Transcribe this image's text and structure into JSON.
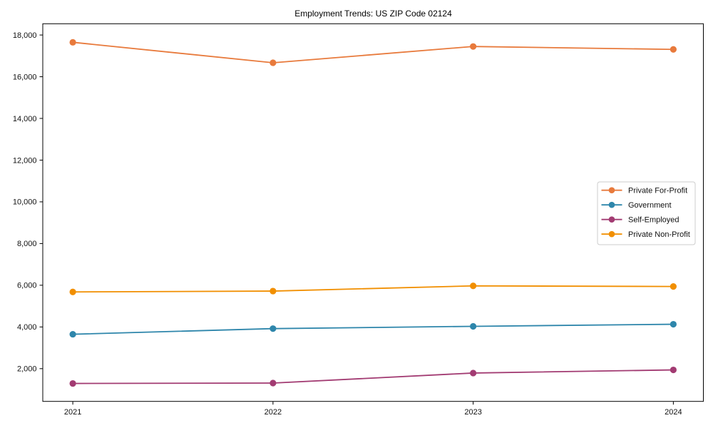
{
  "chart_data": {
    "type": "line",
    "title": "Employment Trends: US ZIP Code 02124",
    "xlabel": "",
    "ylabel": "",
    "x": [
      2021,
      2022,
      2023,
      2024
    ],
    "xticklabels": [
      "2021",
      "2022",
      "2023",
      "2024"
    ],
    "yticks": [
      2000,
      4000,
      6000,
      8000,
      10000,
      12000,
      14000,
      16000,
      18000
    ],
    "yticklabels": [
      "2,000",
      "4,000",
      "6,000",
      "8,000",
      "10,000",
      "12,000",
      "14,000",
      "16,000",
      "18,000"
    ],
    "xlim": [
      2020.85,
      2024.15
    ],
    "ylim": [
      430,
      18540
    ],
    "grid": false,
    "legend_position": "center right",
    "marker": "o",
    "series": [
      {
        "name": "Private For-Profit",
        "color": "#E87A3C",
        "values": [
          17650,
          16670,
          17450,
          17310
        ]
      },
      {
        "name": "Government",
        "color": "#2E86AB",
        "values": [
          3650,
          3920,
          4030,
          4130
        ]
      },
      {
        "name": "Self-Employed",
        "color": "#A23B72",
        "values": [
          1290,
          1310,
          1790,
          1940
        ]
      },
      {
        "name": "Private Non-Profit",
        "color": "#F18F01",
        "values": [
          5680,
          5720,
          5970,
          5940
        ]
      }
    ],
    "colors": {
      "spine": "#000000",
      "tick_text": "#111111",
      "legend_border": "#cccccc",
      "background": "#ffffff"
    }
  }
}
